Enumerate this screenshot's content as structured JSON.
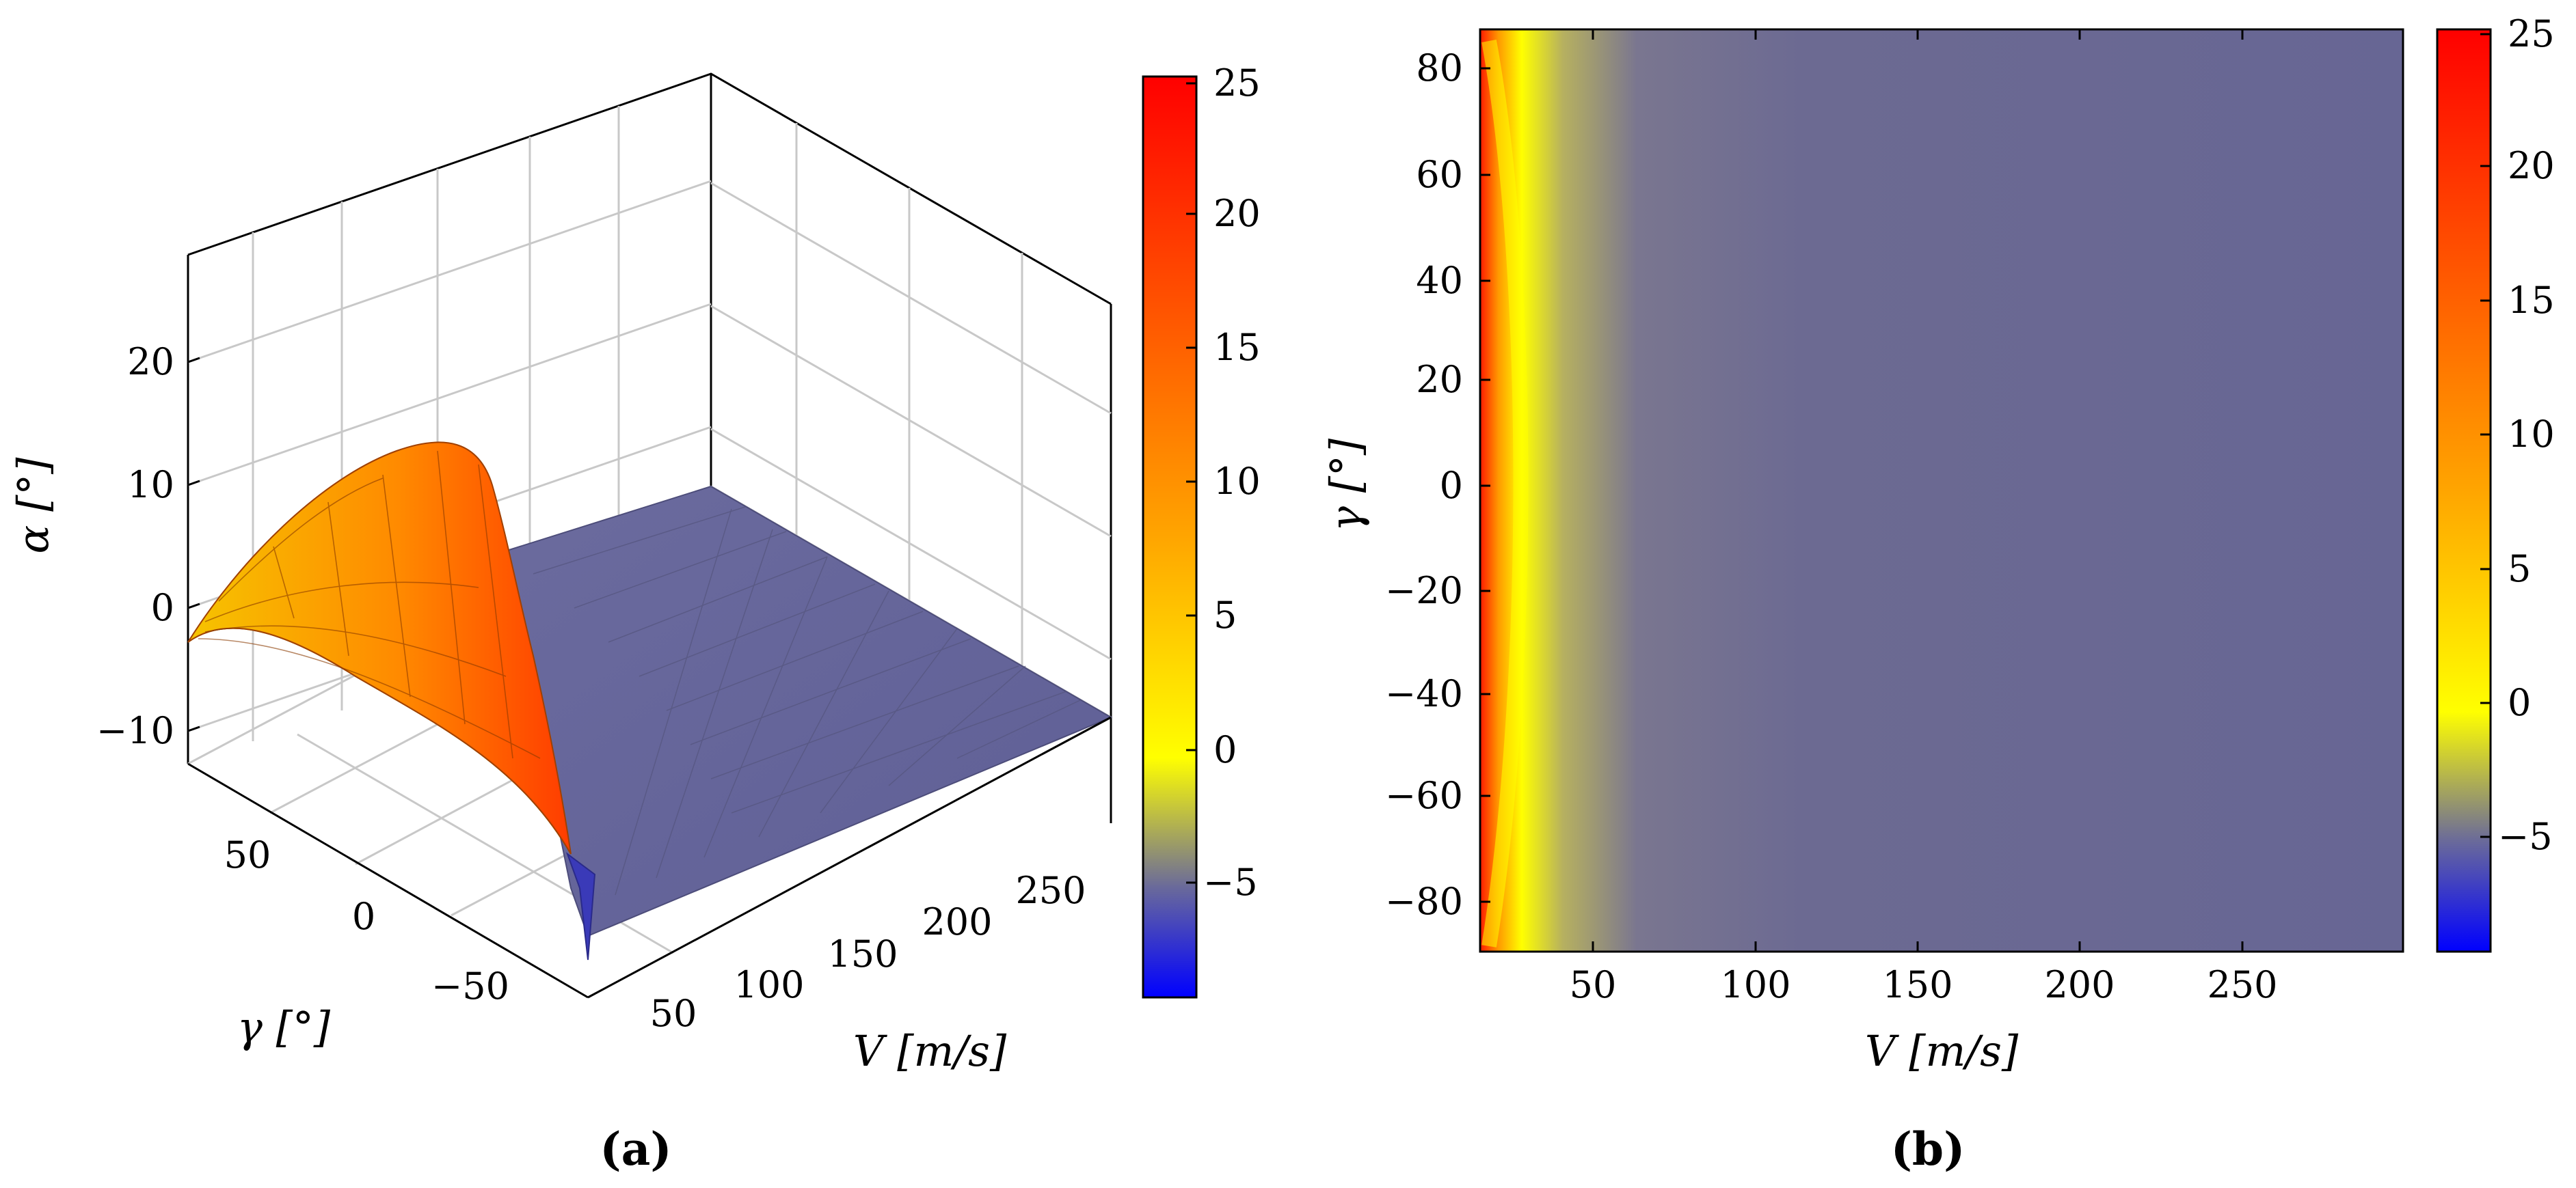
{
  "chart_data": [
    {
      "panel_label": "(a)",
      "type": "surface",
      "xlabel": "V [m/s]",
      "ylabel": "γ [°]",
      "zlabel": "α [°]",
      "xlim": [
        12,
        300
      ],
      "ylim": [
        -90,
        90
      ],
      "zlim": [
        -13,
        28
      ],
      "xticks": [
        "50",
        "100",
        "150",
        "200",
        "250"
      ],
      "yticks": [
        "50",
        "0",
        "−50"
      ],
      "zticks": [
        "20",
        "10",
        "0",
        "−10"
      ],
      "surface": {
        "description_values": "alpha(V,gamma)",
        "V": [
          12,
          20,
          30,
          40,
          60,
          100,
          300
        ],
        "gamma": [
          -90,
          -45,
          0,
          45,
          90
        ],
        "alpha": [
          [
            -10,
            4,
            13,
            4,
            -3
          ],
          [
            -7,
            3,
            9,
            3,
            -3
          ],
          [
            -5,
            1,
            4,
            1,
            -3
          ],
          [
            -4,
            -1,
            1,
            -1,
            -3
          ],
          [
            -4,
            -3,
            -2,
            -3,
            -4
          ],
          [
            -4,
            -4,
            -4,
            -4,
            -4
          ],
          [
            -4,
            -4,
            -4,
            -4,
            -4
          ]
        ]
      },
      "grid": true,
      "colorbar": {
        "ticks": [
          "25",
          "20",
          "15",
          "10",
          "5",
          "0",
          "−5"
        ],
        "range": [
          -9,
          25
        ]
      }
    },
    {
      "panel_label": "(b)",
      "type": "heatmap",
      "xlabel": "V [m/s]",
      "ylabel": "γ [°]",
      "xlim": [
        15,
        300
      ],
      "ylim": [
        -90,
        88
      ],
      "xticks": [
        "50",
        "100",
        "150",
        "200",
        "250"
      ],
      "yticks": [
        "80",
        "60",
        "40",
        "20",
        "0",
        "−20",
        "−40",
        "−60",
        "−80"
      ],
      "colorbar": {
        "ticks": [
          "25",
          "20",
          "15",
          "10",
          "5",
          "0",
          "−5"
        ],
        "range": [
          -9,
          25
        ]
      }
    }
  ],
  "colormap": [
    "#0000ff",
    "#6a6a9a",
    "#ffff00",
    "#ffa500",
    "#ff0000"
  ]
}
